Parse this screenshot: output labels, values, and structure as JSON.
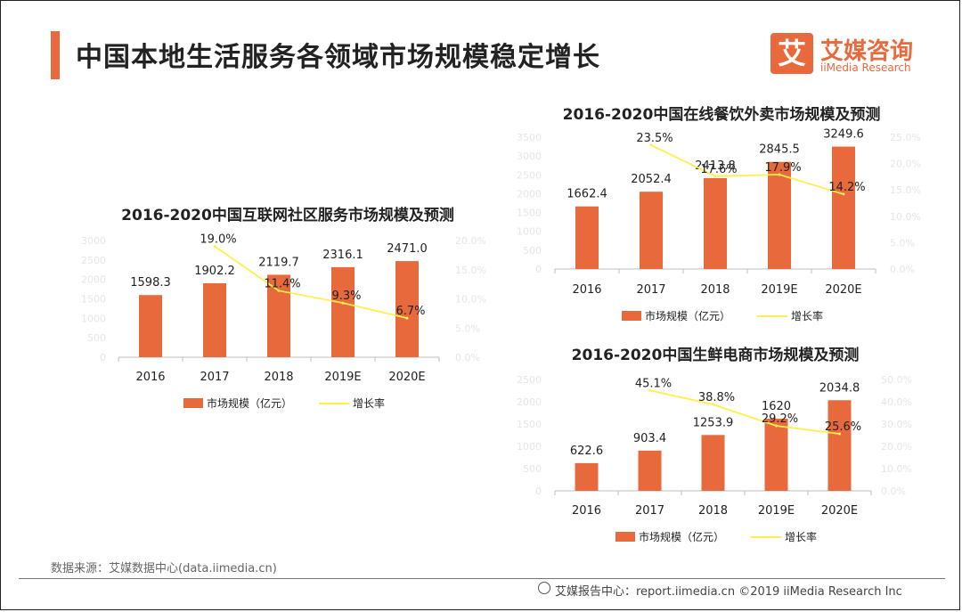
{
  "header": {
    "title": "中国本地生活服务各领域市场规模稳定增长"
  },
  "logo": {
    "mark": "艾",
    "name_cn": "艾媒咨询",
    "name_en": "iiMedia Research"
  },
  "colors": {
    "bar": "#e8693c",
    "line": "#fff04d",
    "accent": "#e8693c"
  },
  "legend": {
    "bar_label": "市场规模（亿元）",
    "line_label": "增长率"
  },
  "chart_data": [
    {
      "type": "bar",
      "title": "2016-2020中国互联网社区服务市场规模及预测",
      "categories": [
        "2016",
        "2017",
        "2018",
        "2019E",
        "2020E"
      ],
      "series": [
        {
          "name": "市场规模（亿元）",
          "type": "bar",
          "values": [
            1598.3,
            1902.2,
            2119.7,
            2316.1,
            2471.0
          ],
          "labels": [
            "1598.3",
            "1902.2",
            "2119.7",
            "2316.1",
            "2471.0"
          ]
        },
        {
          "name": "增长率",
          "type": "line",
          "values": [
            null,
            19.0,
            11.4,
            9.3,
            6.7
          ],
          "labels": [
            "",
            "19.0%",
            "11.4%",
            "9.3%",
            "6.7%"
          ]
        }
      ],
      "ylim": [
        0,
        3000
      ],
      "y_ticks": [
        "3000",
        "2500",
        "2000",
        "1500",
        "1000",
        "500",
        "0"
      ],
      "y2lim": [
        0,
        20
      ],
      "y2_ticks": [
        "20.0%",
        "15.0%",
        "10.0%",
        "5.0%",
        "0.0%"
      ]
    },
    {
      "type": "bar",
      "title": "2016-2020中国在线餐饮外卖市场规模及预测",
      "categories": [
        "2016",
        "2017",
        "2018",
        "2019E",
        "2020E"
      ],
      "series": [
        {
          "name": "市场规模（亿元）",
          "type": "bar",
          "values": [
            1662.4,
            2052.4,
            2413.8,
            2845.5,
            3249.6
          ],
          "labels": [
            "1662.4",
            "2052.4",
            "2413.8",
            "2845.5",
            "3249.6"
          ]
        },
        {
          "name": "增长率",
          "type": "line",
          "values": [
            null,
            23.5,
            17.6,
            17.9,
            14.2
          ],
          "labels": [
            "",
            "23.5%",
            "17.6%",
            "17.9%",
            "14.2%"
          ]
        }
      ],
      "ylim": [
        0,
        3500
      ],
      "y_ticks": [
        "3500",
        "3000",
        "2500",
        "2000",
        "1500",
        "1000",
        "500",
        "0"
      ],
      "y2lim": [
        0,
        25
      ],
      "y2_ticks": [
        "25.0%",
        "20.0%",
        "15.0%",
        "10.0%",
        "5.0%",
        "0.0%"
      ]
    },
    {
      "type": "bar",
      "title": "2016-2020中国生鲜电商市场规模及预测",
      "categories": [
        "2016",
        "2017",
        "2018",
        "2019E",
        "2020E"
      ],
      "series": [
        {
          "name": "市场规模（亿元）",
          "type": "bar",
          "values": [
            622.6,
            903.4,
            1253.9,
            1620,
            2034.8
          ],
          "labels": [
            "622.6",
            "903.4",
            "1253.9",
            "1620",
            "2034.8"
          ]
        },
        {
          "name": "增长率",
          "type": "line",
          "values": [
            null,
            45.1,
            38.8,
            29.2,
            25.6
          ],
          "labels": [
            "",
            "45.1%",
            "38.8%",
            "29.2%",
            "25.6%"
          ]
        }
      ],
      "ylim": [
        0,
        2500
      ],
      "y_ticks": [
        "2500",
        "2000",
        "1500",
        "1000",
        "500",
        "0"
      ],
      "y2lim": [
        0,
        50
      ],
      "y2_ticks": [
        "50.0%",
        "40.0%",
        "30.0%",
        "20.0%",
        "10.0%",
        "0.0%"
      ]
    }
  ],
  "footer": {
    "source": "数据来源：艾媒数据中心(data.iimedia.cn)",
    "report": "艾媒报告中心：report.iimedia.cn   ©2019  iiMedia Research  Inc"
  }
}
